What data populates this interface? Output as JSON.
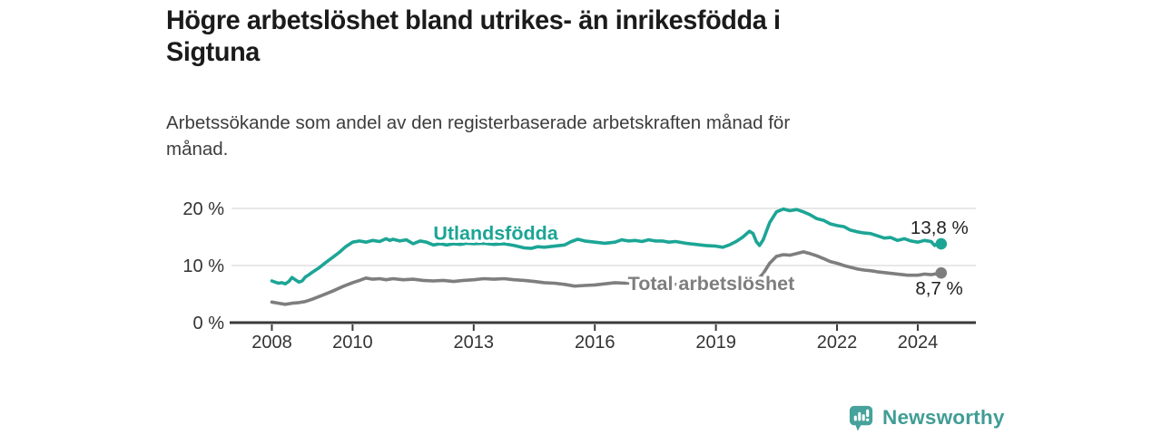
{
  "header": {
    "title": "Högre arbetslöshet bland utrikes- än inrikesfödda i Sigtuna",
    "title_lines": [
      "Högre arbetslöshet bland utrikes- än inrikesfödda i",
      "Sigtuna"
    ],
    "subtitle": "Arbetssökande som andel av den registerbaserade arbetskraften månad för månad.",
    "subtitle_lines": [
      "Arbetssökande som andel av den registerbaserade arbetskraften månad för",
      "månad."
    ]
  },
  "branding": {
    "logo_text": "Newsworthy",
    "logo_icon": "bar-chart-speech-bubble-icon",
    "logo_color": "#46a29a"
  },
  "colors": {
    "foreign_born_line": "#1ca595",
    "total_line": "#7e7e7e",
    "axis": "#3a3a3a",
    "gridline": "#d9d9d9",
    "tick_text": "#333333",
    "value_text": "#1f1f1f",
    "title_text": "#1b1b1b"
  },
  "chart_data": {
    "type": "line",
    "title": "Högre arbetslöshet bland utrikes- än inrikesfödda i Sigtuna",
    "subtitle": "Arbetssökande som andel av den registerbaserade arbetskraften månad för månad.",
    "xlabel": "",
    "ylabel": "",
    "grid": "horizontal-only",
    "legend": "direct-labels-on-lines",
    "xlim": [
      2007.0,
      2025.44
    ],
    "ylim": [
      0,
      21.9
    ],
    "x_ticks": [
      {
        "value": 2008,
        "label": "2008"
      },
      {
        "value": 2010,
        "label": "2010"
      },
      {
        "value": 2013,
        "label": "2013"
      },
      {
        "value": 2016,
        "label": "2016"
      },
      {
        "value": 2019,
        "label": "2019"
      },
      {
        "value": 2022,
        "label": "2022"
      },
      {
        "value": 2024,
        "label": "2024"
      }
    ],
    "y_ticks": [
      {
        "value": 0,
        "label": "0 %"
      },
      {
        "value": 10,
        "label": "10 %"
      },
      {
        "value": 20,
        "label": "20 %"
      }
    ],
    "series": [
      {
        "name": "Utlandsfödda",
        "color": "#1ca595",
        "end_label": "13,8 %",
        "end_value": 13.8,
        "label_anchor": {
          "x": 2012.0,
          "y": 14.5
        },
        "end_label_offset": [
          30,
          -11
        ],
        "points": [
          [
            2008.0,
            7.3
          ],
          [
            2008.08,
            7.1
          ],
          [
            2008.17,
            6.9
          ],
          [
            2008.25,
            7.0
          ],
          [
            2008.33,
            6.8
          ],
          [
            2008.42,
            7.2
          ],
          [
            2008.5,
            7.9
          ],
          [
            2008.58,
            7.5
          ],
          [
            2008.67,
            7.1
          ],
          [
            2008.75,
            7.3
          ],
          [
            2008.83,
            8.0
          ],
          [
            2008.92,
            8.4
          ],
          [
            2009.0,
            8.8
          ],
          [
            2009.17,
            9.6
          ],
          [
            2009.33,
            10.5
          ],
          [
            2009.5,
            11.4
          ],
          [
            2009.67,
            12.3
          ],
          [
            2009.83,
            13.3
          ],
          [
            2010.0,
            14.1
          ],
          [
            2010.17,
            14.3
          ],
          [
            2010.33,
            14.1
          ],
          [
            2010.5,
            14.4
          ],
          [
            2010.67,
            14.2
          ],
          [
            2010.83,
            14.7
          ],
          [
            2010.92,
            14.4
          ],
          [
            2011.0,
            14.6
          ],
          [
            2011.17,
            14.3
          ],
          [
            2011.33,
            14.5
          ],
          [
            2011.5,
            13.8
          ],
          [
            2011.67,
            14.3
          ],
          [
            2011.83,
            14.1
          ],
          [
            2012.0,
            13.6
          ],
          [
            2012.17,
            13.8
          ],
          [
            2012.33,
            13.6
          ],
          [
            2012.5,
            13.8
          ],
          [
            2012.67,
            13.7
          ],
          [
            2012.83,
            13.9
          ],
          [
            2013.0,
            13.8
          ],
          [
            2013.25,
            13.9
          ],
          [
            2013.5,
            13.7
          ],
          [
            2013.75,
            13.8
          ],
          [
            2014.0,
            13.5
          ],
          [
            2014.25,
            13.1
          ],
          [
            2014.42,
            13.0
          ],
          [
            2014.58,
            13.3
          ],
          [
            2014.75,
            13.2
          ],
          [
            2015.0,
            13.4
          ],
          [
            2015.25,
            13.6
          ],
          [
            2015.42,
            14.2
          ],
          [
            2015.58,
            14.6
          ],
          [
            2015.75,
            14.3
          ],
          [
            2016.0,
            14.1
          ],
          [
            2016.25,
            13.9
          ],
          [
            2016.5,
            14.1
          ],
          [
            2016.67,
            14.5
          ],
          [
            2016.83,
            14.3
          ],
          [
            2017.0,
            14.4
          ],
          [
            2017.17,
            14.2
          ],
          [
            2017.33,
            14.5
          ],
          [
            2017.5,
            14.3
          ],
          [
            2017.67,
            14.3
          ],
          [
            2017.83,
            14.1
          ],
          [
            2018.0,
            14.2
          ],
          [
            2018.25,
            13.9
          ],
          [
            2018.5,
            13.7
          ],
          [
            2018.75,
            13.5
          ],
          [
            2019.0,
            13.4
          ],
          [
            2019.17,
            13.2
          ],
          [
            2019.33,
            13.6
          ],
          [
            2019.5,
            14.2
          ],
          [
            2019.67,
            15.0
          ],
          [
            2019.83,
            16.0
          ],
          [
            2019.92,
            15.6
          ],
          [
            2020.0,
            14.2
          ],
          [
            2020.08,
            13.5
          ],
          [
            2020.17,
            14.5
          ],
          [
            2020.33,
            17.5
          ],
          [
            2020.5,
            19.4
          ],
          [
            2020.67,
            19.9
          ],
          [
            2020.83,
            19.6
          ],
          [
            2021.0,
            19.8
          ],
          [
            2021.17,
            19.4
          ],
          [
            2021.33,
            18.9
          ],
          [
            2021.5,
            18.2
          ],
          [
            2021.67,
            17.9
          ],
          [
            2021.83,
            17.3
          ],
          [
            2022.0,
            17.0
          ],
          [
            2022.17,
            16.8
          ],
          [
            2022.33,
            16.2
          ],
          [
            2022.5,
            15.9
          ],
          [
            2022.67,
            15.7
          ],
          [
            2022.83,
            15.6
          ],
          [
            2023.0,
            15.2
          ],
          [
            2023.17,
            14.8
          ],
          [
            2023.33,
            14.9
          ],
          [
            2023.5,
            14.4
          ],
          [
            2023.67,
            14.7
          ],
          [
            2023.83,
            14.3
          ],
          [
            2024.0,
            14.1
          ],
          [
            2024.17,
            14.4
          ],
          [
            2024.33,
            14.2
          ],
          [
            2024.42,
            13.5
          ],
          [
            2024.5,
            13.9
          ],
          [
            2024.58,
            13.8
          ]
        ]
      },
      {
        "name": "Total arbetslöshet",
        "color": "#7e7e7e",
        "end_label": "8,7 %",
        "end_value": 8.7,
        "label_anchor": {
          "x": 2016.82,
          "y": 5.7
        },
        "end_label_offset": [
          24,
          24
        ],
        "points": [
          [
            2008.0,
            3.6
          ],
          [
            2008.17,
            3.4
          ],
          [
            2008.33,
            3.2
          ],
          [
            2008.5,
            3.4
          ],
          [
            2008.67,
            3.5
          ],
          [
            2008.83,
            3.7
          ],
          [
            2009.0,
            4.1
          ],
          [
            2009.25,
            4.8
          ],
          [
            2009.5,
            5.5
          ],
          [
            2009.75,
            6.3
          ],
          [
            2010.0,
            7.0
          ],
          [
            2010.17,
            7.4
          ],
          [
            2010.33,
            7.8
          ],
          [
            2010.5,
            7.6
          ],
          [
            2010.67,
            7.7
          ],
          [
            2010.83,
            7.5
          ],
          [
            2011.0,
            7.7
          ],
          [
            2011.25,
            7.5
          ],
          [
            2011.5,
            7.6
          ],
          [
            2011.75,
            7.4
          ],
          [
            2012.0,
            7.3
          ],
          [
            2012.25,
            7.4
          ],
          [
            2012.5,
            7.2
          ],
          [
            2012.75,
            7.4
          ],
          [
            2013.0,
            7.5
          ],
          [
            2013.25,
            7.7
          ],
          [
            2013.5,
            7.6
          ],
          [
            2013.75,
            7.7
          ],
          [
            2014.0,
            7.5
          ],
          [
            2014.25,
            7.4
          ],
          [
            2014.5,
            7.2
          ],
          [
            2014.75,
            7.0
          ],
          [
            2015.0,
            6.9
          ],
          [
            2015.25,
            6.7
          ],
          [
            2015.5,
            6.4
          ],
          [
            2015.75,
            6.5
          ],
          [
            2016.0,
            6.6
          ],
          [
            2016.25,
            6.8
          ],
          [
            2016.5,
            7.0
          ],
          [
            2016.75,
            6.9
          ],
          [
            2017.0,
            7.0
          ],
          [
            2017.25,
            6.9
          ],
          [
            2017.5,
            6.8
          ],
          [
            2017.75,
            6.7
          ],
          [
            2018.0,
            6.7
          ],
          [
            2018.25,
            6.6
          ],
          [
            2018.5,
            6.5
          ],
          [
            2018.75,
            6.5
          ],
          [
            2019.0,
            6.4
          ],
          [
            2019.25,
            6.4
          ],
          [
            2019.5,
            6.5
          ],
          [
            2019.75,
            6.8
          ],
          [
            2019.92,
            7.0
          ],
          [
            2020.0,
            7.3
          ],
          [
            2020.17,
            8.6
          ],
          [
            2020.33,
            10.4
          ],
          [
            2020.5,
            11.6
          ],
          [
            2020.67,
            11.9
          ],
          [
            2020.83,
            11.8
          ],
          [
            2021.0,
            12.1
          ],
          [
            2021.17,
            12.4
          ],
          [
            2021.33,
            12.1
          ],
          [
            2021.5,
            11.7
          ],
          [
            2021.67,
            11.2
          ],
          [
            2021.83,
            10.7
          ],
          [
            2022.0,
            10.4
          ],
          [
            2022.17,
            10.0
          ],
          [
            2022.33,
            9.7
          ],
          [
            2022.5,
            9.4
          ],
          [
            2022.67,
            9.2
          ],
          [
            2022.83,
            9.1
          ],
          [
            2023.0,
            8.9
          ],
          [
            2023.25,
            8.7
          ],
          [
            2023.5,
            8.5
          ],
          [
            2023.75,
            8.3
          ],
          [
            2024.0,
            8.3
          ],
          [
            2024.17,
            8.5
          ],
          [
            2024.33,
            8.4
          ],
          [
            2024.5,
            8.6
          ],
          [
            2024.58,
            8.7
          ]
        ]
      }
    ]
  }
}
